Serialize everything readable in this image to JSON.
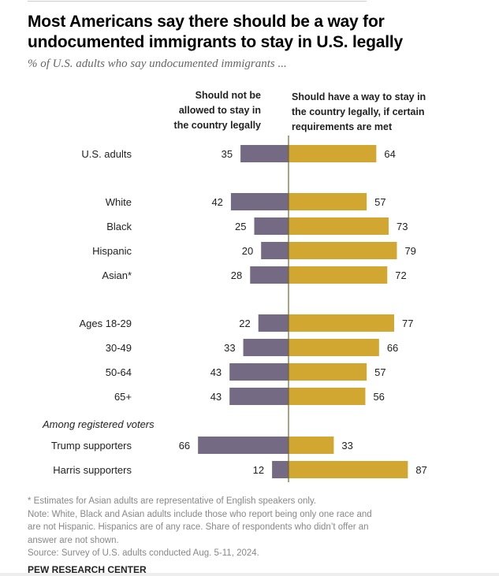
{
  "chart_data": {
    "type": "bar",
    "orientation": "horizontal-diverging",
    "title": "Most Americans say there should be a way for undocumented immigrants to stay in U.S. legally",
    "subtitle": "% of U.S. adults who say undocumented immigrants ...",
    "series": [
      {
        "name": "Should not be allowed to stay in the country legally",
        "color": "#756a83",
        "values": [
          35,
          42,
          25,
          20,
          28,
          22,
          33,
          43,
          43,
          66,
          12
        ]
      },
      {
        "name": "Should have a way to stay in the country legally, if certain requirements are met",
        "color": "#d2a731",
        "values": [
          64,
          57,
          73,
          79,
          72,
          77,
          66,
          57,
          56,
          33,
          87
        ]
      }
    ],
    "categories": [
      "U.S. adults",
      "White",
      "Black",
      "Hispanic",
      "Asian*",
      "Ages 18-29",
      "30-49",
      "50-64",
      "65+",
      "Trump supporters",
      "Harris supporters"
    ],
    "group_label": "Among registered voters",
    "legend_left": [
      "Should not be",
      "allowed to stay in",
      "the country legally"
    ],
    "legend_right": [
      "Should have a way to stay in",
      "the country legally, if certain",
      "requirements are met"
    ]
  },
  "notes": {
    "asterisk": "* Estimates for Asian adults are representative of English speakers only.",
    "note": "Note: White, Black and Asian adults include those who report being only one race and are not Hispanic. Hispanics are of any race. Share of respondents who didn’t offer an answer are not shown.",
    "source": "Source: Survey of U.S. adults conducted Aug. 5-11, 2024."
  },
  "brand": "PEW RESEARCH CENTER"
}
